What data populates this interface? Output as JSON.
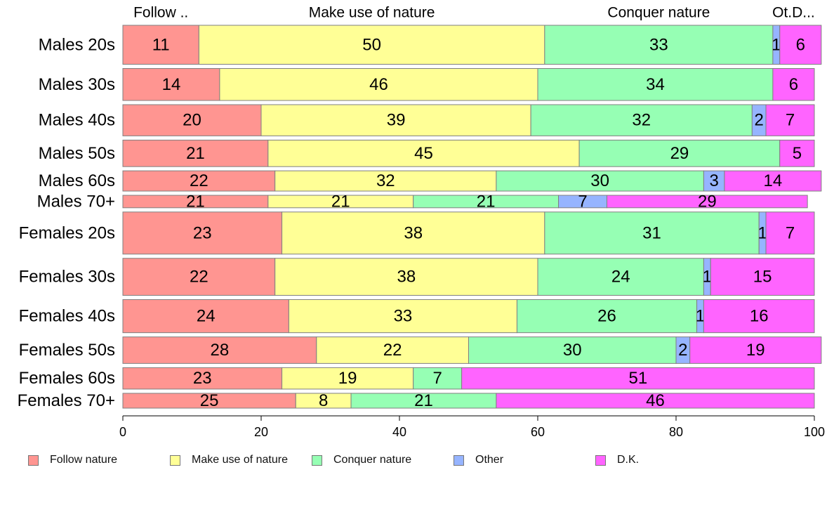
{
  "chart_data": {
    "type": "bar",
    "orientation": "horizontal",
    "stacked": true,
    "xlim": [
      0,
      100
    ],
    "x_ticks": [
      0,
      20,
      40,
      60,
      80,
      100
    ],
    "categories": [
      "Males 20s",
      "Males 30s",
      "Males 40s",
      "Males 50s",
      "Males 60s",
      "Males 70+",
      "Females 20s",
      "Females 30s",
      "Females 40s",
      "Females 50s",
      "Females 60s",
      "Females 70+"
    ],
    "row_weights": [
      1.0,
      0.82,
      0.8,
      0.68,
      0.52,
      0.32,
      1.08,
      0.95,
      0.85,
      0.68,
      0.55,
      0.38
    ],
    "top_labels": [
      "Follow ..",
      "Make use of nature",
      "Conquer nature",
      "Ot.D..."
    ],
    "series": [
      {
        "name": "Follow nature",
        "color": "#FF9591",
        "values": [
          11,
          14,
          20,
          21,
          22,
          21,
          23,
          22,
          24,
          28,
          23,
          25
        ]
      },
      {
        "name": "Make use of nature",
        "color": "#FFFF96",
        "values": [
          50,
          46,
          39,
          45,
          32,
          21,
          38,
          38,
          33,
          22,
          19,
          8
        ]
      },
      {
        "name": "Conquer nature",
        "color": "#96FFB4",
        "values": [
          33,
          34,
          32,
          29,
          30,
          21,
          31,
          24,
          26,
          30,
          7,
          21
        ]
      },
      {
        "name": "Other",
        "color": "#96B4FF",
        "values": [
          1,
          0,
          2,
          0,
          3,
          7,
          1,
          1,
          1,
          2,
          0,
          0
        ]
      },
      {
        "name": "D.K.",
        "color": "#FF64FF",
        "values": [
          6,
          6,
          7,
          5,
          14,
          29,
          7,
          15,
          16,
          19,
          51,
          46
        ]
      }
    ],
    "legend_position": "bottom",
    "grid": false
  }
}
